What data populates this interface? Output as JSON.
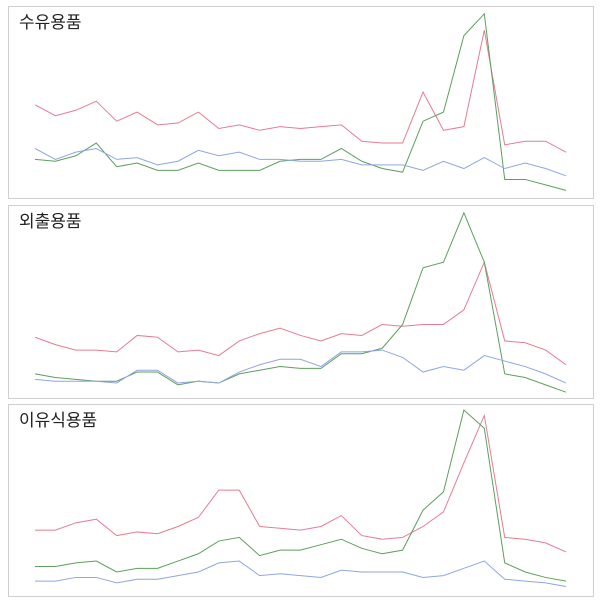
{
  "chart_data": [
    {
      "type": "line",
      "title": "수유용품",
      "ylim": [
        0,
        100
      ],
      "series": [
        {
          "color": "#e57c94",
          "values": [
            49,
            43,
            46,
            51,
            40,
            45,
            38,
            39,
            45,
            36,
            38,
            35,
            37,
            36,
            37,
            38,
            29,
            28,
            28,
            56,
            35,
            37,
            90,
            27,
            29,
            29,
            23
          ]
        },
        {
          "color": "#5e9e5e",
          "values": [
            19,
            18,
            21,
            28,
            15,
            17,
            13,
            13,
            17,
            13,
            13,
            13,
            18,
            19,
            19,
            25,
            18,
            14,
            12,
            40,
            45,
            87,
            99,
            8,
            8,
            5,
            2
          ]
        },
        {
          "color": "#8fa6e0",
          "values": [
            25,
            19,
            23,
            25,
            19,
            20,
            16,
            18,
            24,
            21,
            23,
            19,
            19,
            18,
            18,
            19,
            16,
            16,
            16,
            13,
            18,
            14,
            20,
            14,
            17,
            14,
            10
          ]
        }
      ]
    },
    {
      "type": "line",
      "title": "외출용품",
      "ylim": [
        0,
        100
      ],
      "series": [
        {
          "color": "#e57c94",
          "values": [
            31,
            27,
            24,
            24,
            23,
            32,
            31,
            23,
            24,
            21,
            29,
            33,
            36,
            32,
            29,
            33,
            32,
            38,
            37,
            38,
            38,
            46,
            72,
            29,
            28,
            24,
            16
          ]
        },
        {
          "color": "#5e9e5e",
          "values": [
            11,
            9,
            8,
            7,
            7,
            12,
            12,
            5,
            7,
            6,
            11,
            13,
            15,
            14,
            14,
            22,
            22,
            25,
            38,
            69,
            72,
            99,
            72,
            11,
            9,
            5,
            1
          ]
        },
        {
          "color": "#8fa6e0",
          "values": [
            8,
            7,
            7,
            7,
            6,
            13,
            13,
            6,
            7,
            6,
            12,
            16,
            19,
            19,
            15,
            23,
            23,
            24,
            20,
            12,
            15,
            13,
            21,
            18,
            15,
            11,
            6
          ]
        }
      ]
    },
    {
      "type": "line",
      "title": "이유식용품",
      "ylim": [
        0,
        100
      ],
      "series": [
        {
          "color": "#e57c94",
          "values": [
            34,
            34,
            38,
            40,
            31,
            33,
            32,
            36,
            41,
            56,
            56,
            36,
            35,
            34,
            36,
            42,
            31,
            29,
            30,
            36,
            44,
            71,
            97,
            30,
            29,
            27,
            22
          ]
        },
        {
          "color": "#5e9e5e",
          "values": [
            14,
            14,
            16,
            17,
            11,
            13,
            13,
            17,
            21,
            28,
            30,
            20,
            23,
            23,
            26,
            29,
            24,
            21,
            23,
            45,
            55,
            100,
            90,
            16,
            11,
            8,
            6
          ]
        },
        {
          "color": "#8fa6e0",
          "values": [
            6,
            6,
            8,
            8,
            5,
            7,
            7,
            9,
            11,
            16,
            17,
            9,
            10,
            9,
            8,
            12,
            11,
            11,
            11,
            8,
            9,
            13,
            17,
            7,
            6,
            5,
            3
          ]
        }
      ]
    }
  ]
}
